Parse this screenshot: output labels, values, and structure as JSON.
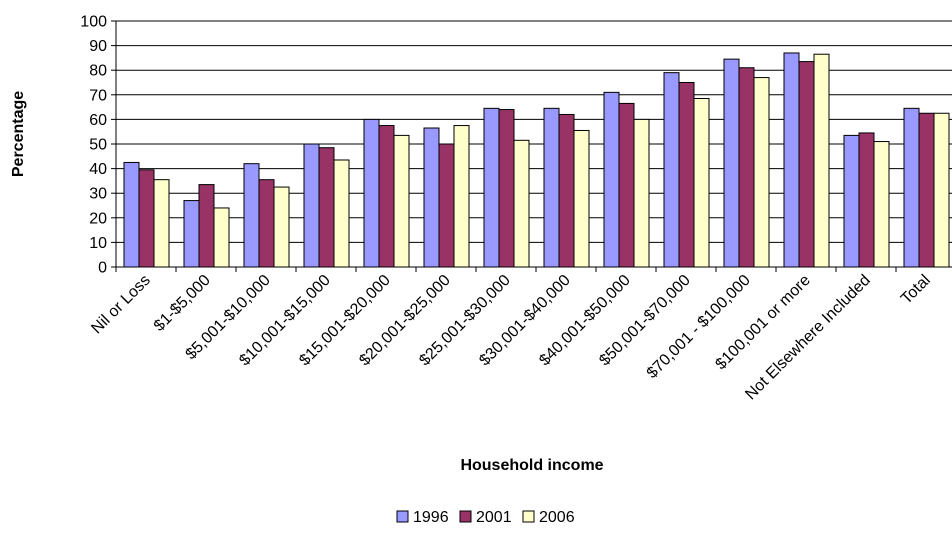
{
  "chart_data": {
    "type": "bar",
    "title": "",
    "xlabel": "Household income",
    "ylabel": "Percentage",
    "ylim": [
      0,
      100
    ],
    "yticks": [
      0,
      10,
      20,
      30,
      40,
      50,
      60,
      70,
      80,
      90,
      100
    ],
    "grid": true,
    "legend_position": "bottom",
    "categories": [
      "Nil or Loss",
      "$1-$5,000",
      "$5,001-$10,000",
      "$10,001-$15,000",
      "$15,001-$20,000",
      "$20,001-$25,000",
      "$25,001-$30,000",
      "$30,001-$40,000",
      "$40,001-$50,000",
      "$50,001-$70,000",
      "$70,001 - $100,000",
      "$100,001 or more",
      "Not Elsewhere Included",
      "Total"
    ],
    "series": [
      {
        "name": "1996",
        "color": "#9999FF",
        "values": [
          42.5,
          27,
          42,
          50,
          60,
          56.5,
          64.5,
          64.5,
          71,
          79,
          84.5,
          87,
          53.5,
          64.5
        ]
      },
      {
        "name": "2001",
        "color": "#993366",
        "values": [
          39.5,
          33.5,
          35.5,
          48.5,
          57.5,
          50,
          64,
          62,
          66.5,
          75,
          81,
          83.5,
          54.5,
          62.5
        ]
      },
      {
        "name": "2006",
        "color": "#FFFFCC",
        "values": [
          35.5,
          24,
          32.5,
          43.5,
          53.5,
          57.5,
          51.5,
          55.5,
          60,
          68.5,
          77,
          86.5,
          51,
          62.5
        ]
      }
    ]
  }
}
